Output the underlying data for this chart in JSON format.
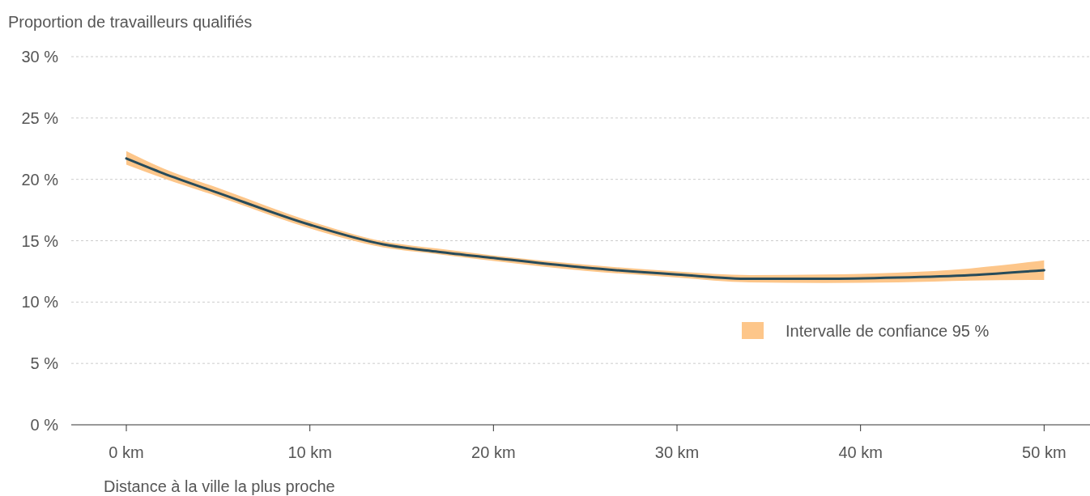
{
  "chart_data": {
    "type": "line",
    "ylabel": "Proportion de travailleurs qualifiés",
    "xlabel": "Distance à la ville la plus proche",
    "grid": "y",
    "colors": [
      "#fdc68a"
    ],
    "annotations": [
      "Intervalle de confiance 95 %"
    ],
    "x": [
      0,
      2,
      5,
      10,
      14,
      17,
      20,
      25,
      30,
      34,
      38,
      42,
      46,
      50
    ],
    "series": [
      {
        "color": "#274b5a",
        "values": [
          21.7,
          20.5,
          18.9,
          16.3,
          14.7,
          14.1,
          13.6,
          12.8,
          12.25,
          11.9,
          11.9,
          12.0,
          12.2,
          12.6
        ],
        "lower": [
          21.2,
          20.1,
          18.6,
          16.0,
          14.45,
          13.9,
          13.35,
          12.55,
          12.0,
          11.6,
          11.55,
          11.6,
          11.75,
          11.8
        ],
        "upper": [
          22.3,
          20.9,
          19.3,
          16.6,
          14.95,
          14.35,
          13.8,
          13.05,
          12.5,
          12.2,
          12.25,
          12.4,
          12.75,
          13.4
        ]
      }
    ],
    "xlim": [
      -3,
      52.5
    ],
    "ylim": [
      0,
      30
    ],
    "xticks": [
      {
        "value": 0,
        "label": "0 km"
      },
      {
        "value": 10,
        "label": "10 km"
      },
      {
        "value": 20,
        "label": "20 km"
      },
      {
        "value": 30,
        "label": "30 km"
      },
      {
        "value": 40,
        "label": "40 km"
      },
      {
        "value": 50,
        "label": "50 km"
      }
    ],
    "yticks": [
      {
        "value": 0,
        "label": "0 %"
      },
      {
        "value": 5,
        "label": "5 %"
      },
      {
        "value": 10,
        "label": "10 %"
      },
      {
        "value": 15,
        "label": "15 %"
      },
      {
        "value": 20,
        "label": "20 %"
      },
      {
        "value": 25,
        "label": "25 %"
      },
      {
        "value": 30,
        "label": "30 %"
      }
    ]
  }
}
